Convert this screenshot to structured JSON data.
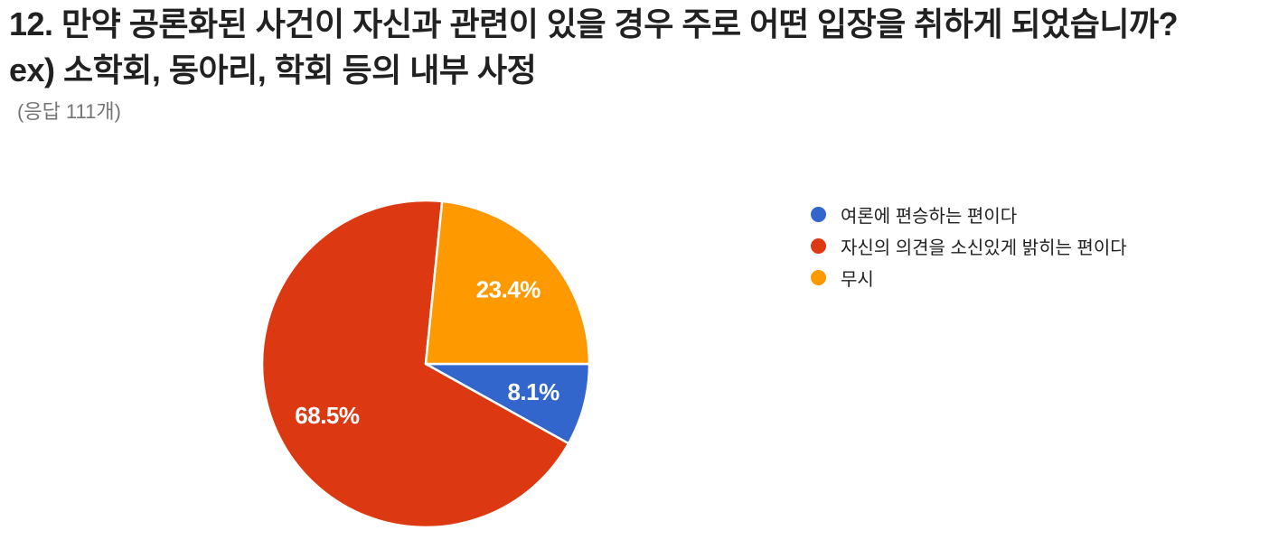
{
  "header": {
    "title_line1": "12. 만약 공론화된 사건이 자신과 관련이 있을 경우 주로 어떤 입장을 취하게 되었습니까?",
    "title_line2": "ex) 소학회, 동아리, 학회 등의 내부 사정",
    "responses_label": "(응답 111개)"
  },
  "chart_data": {
    "type": "pie",
    "title": "12. 만약 공론화된 사건이 자신과 관련이 있을 경우 주로 어떤 입장을 취하게 되었습니까? ex) 소학회, 동아리, 학회 등의 내부 사정",
    "subtitle": "(응답 111개)",
    "total_responses": 111,
    "categories": [
      "여론에 편승하는 편이다",
      "자신의 의견을 소신있게 밝히는 편이다",
      "무시"
    ],
    "values": [
      8.1,
      68.5,
      23.4
    ],
    "value_labels": [
      "8.1%",
      "68.5%",
      "23.4%"
    ],
    "colors": [
      "#3366cc",
      "#dc3912",
      "#ff9900"
    ],
    "slice_border_color": "#ffffff",
    "label_text_color": "#ffffff",
    "start_angle_clockwise_from_east_deg": 0,
    "direction": "clockwise",
    "legend_position": "right",
    "grid": false
  }
}
